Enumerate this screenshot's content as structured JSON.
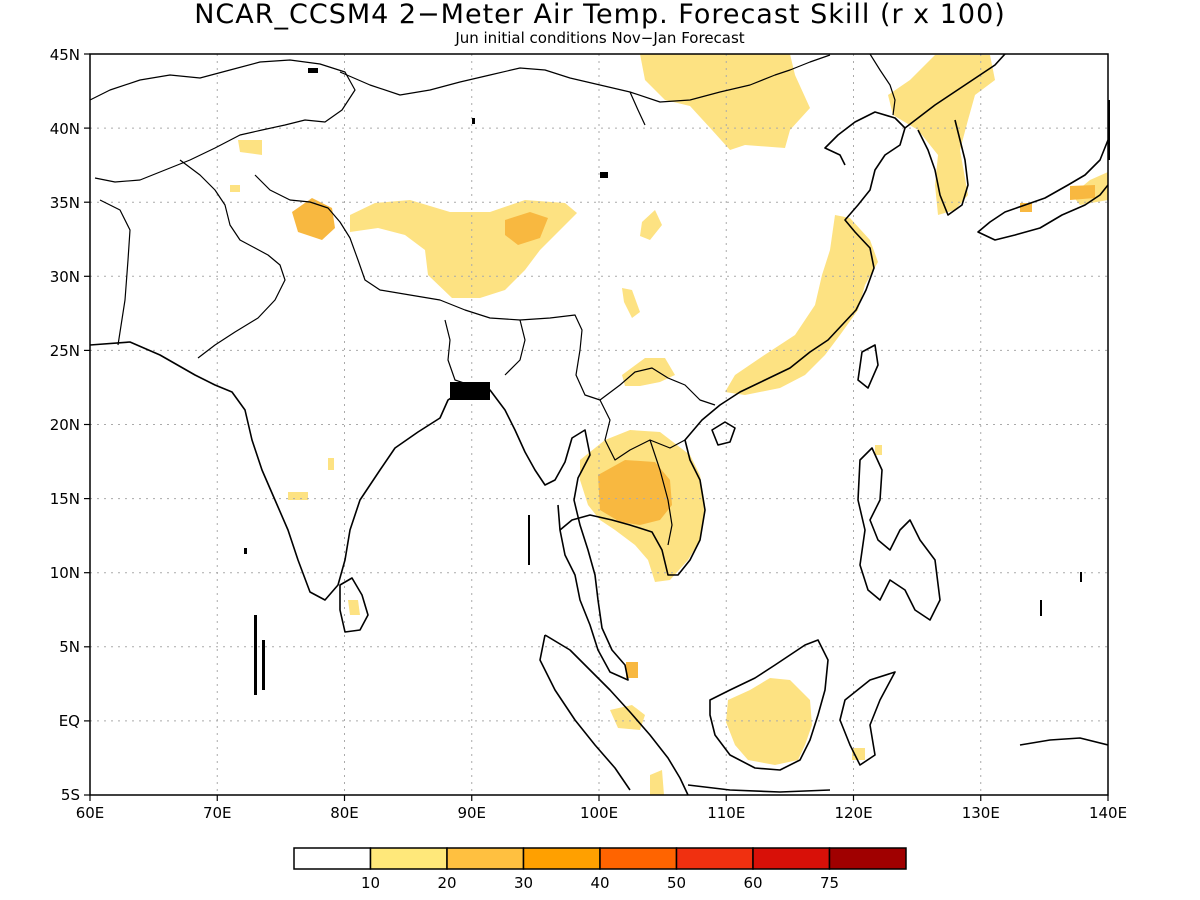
{
  "title": "NCAR_CCSM4 2−Meter Air Temp. Forecast Skill (r x 100)",
  "subtitle": "Jun initial conditions  Nov−Jan Forecast",
  "map": {
    "lon_range": [
      60,
      140
    ],
    "lat_range": [
      -5,
      45
    ],
    "lat_labels": [
      "45N",
      "40N",
      "35N",
      "30N",
      "25N",
      "20N",
      "15N",
      "10N",
      "5N",
      "EQ",
      "5S"
    ],
    "lon_labels": [
      "60E",
      "70E",
      "80E",
      "90E",
      "100E",
      "110E",
      "120E",
      "130E",
      "140E"
    ],
    "gridlines": "dotted"
  },
  "legend": {
    "labels": [
      "10",
      "20",
      "30",
      "40",
      "50",
      "60",
      "75"
    ],
    "colors": [
      "#ffffff",
      "#ffe87a",
      "#ffc040",
      "#ffa000",
      "#ff6400",
      "#f03010",
      "#d81008",
      "#a00000"
    ]
  },
  "regions": {
    "low_skill_color": "#fde282",
    "mid_skill_color": "#f8b840"
  }
}
